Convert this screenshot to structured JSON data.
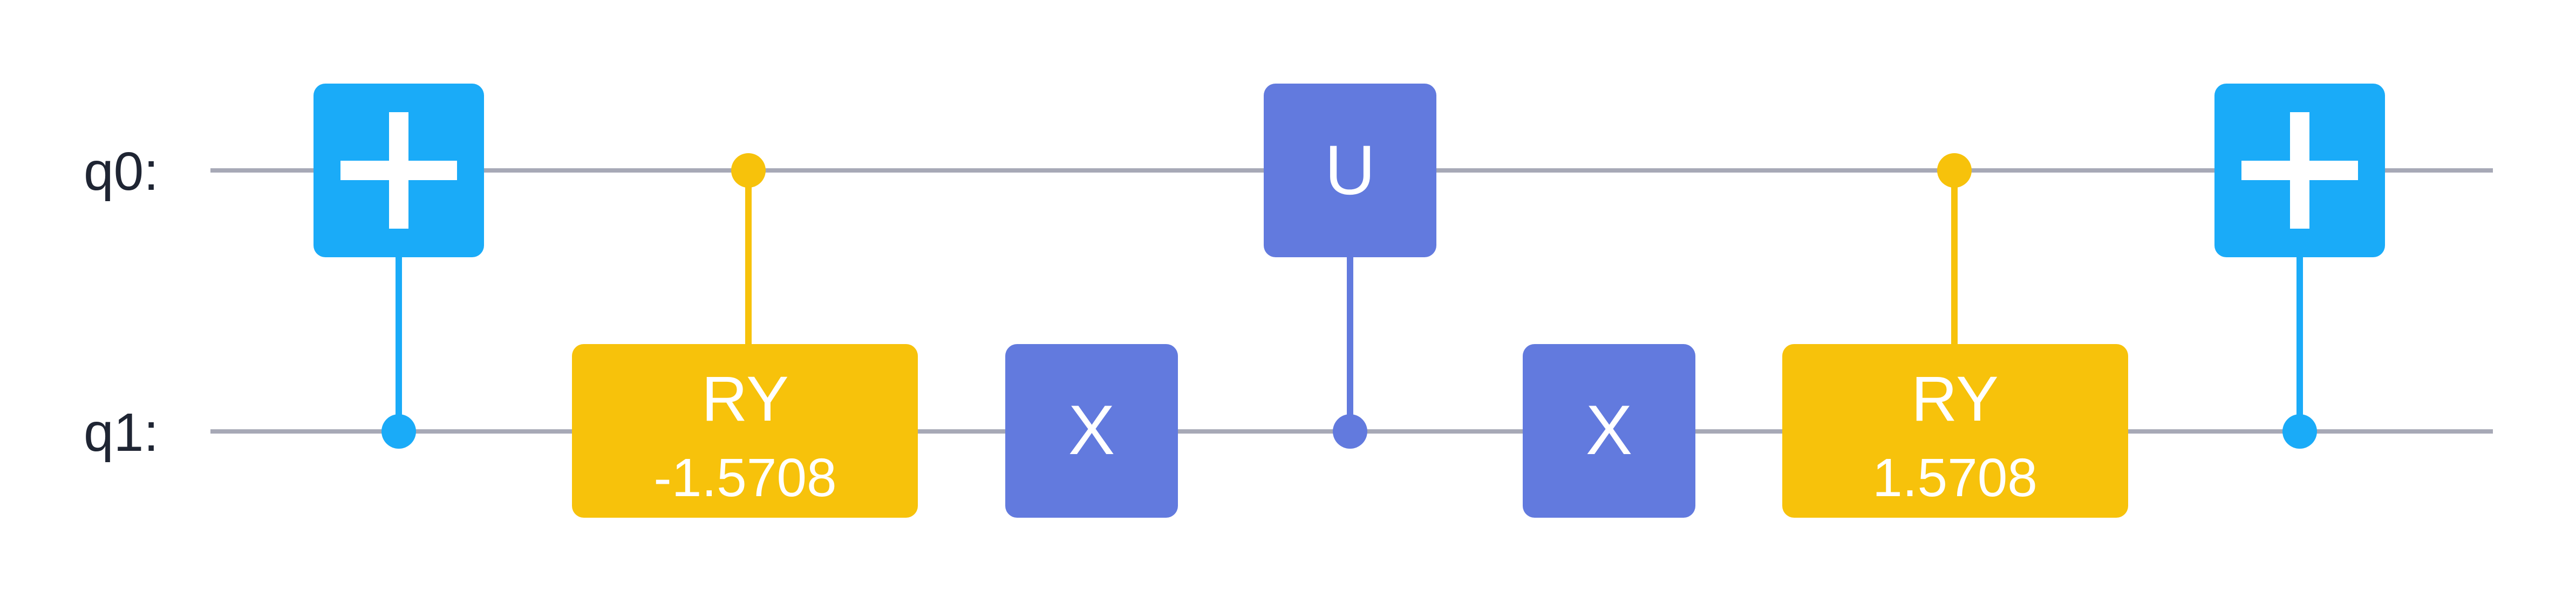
{
  "circuit": {
    "wires": [
      {
        "label": "q0:"
      },
      {
        "label": "q1:"
      }
    ],
    "gates": [
      {
        "type": "cx",
        "control": 1,
        "target": 0
      },
      {
        "type": "cry",
        "name": "RY",
        "param": "-1.5708",
        "control": 0,
        "target": 1
      },
      {
        "type": "x",
        "name": "X",
        "target": 1
      },
      {
        "type": "cu",
        "name": "U",
        "control": 1,
        "target": 0
      },
      {
        "type": "x",
        "name": "X",
        "target": 1
      },
      {
        "type": "cry",
        "name": "RY",
        "param": "1.5708",
        "control": 0,
        "target": 1
      },
      {
        "type": "cx",
        "control": 1,
        "target": 0
      }
    ]
  },
  "colors": {
    "wire": "#a7a9b6",
    "cx": "#1aabf8",
    "ry": "#f7c20b",
    "x_gate": "#627ade",
    "u_gate": "#627ade",
    "text_on_gate": "#ffffff",
    "wire_label": "#1f2533"
  }
}
